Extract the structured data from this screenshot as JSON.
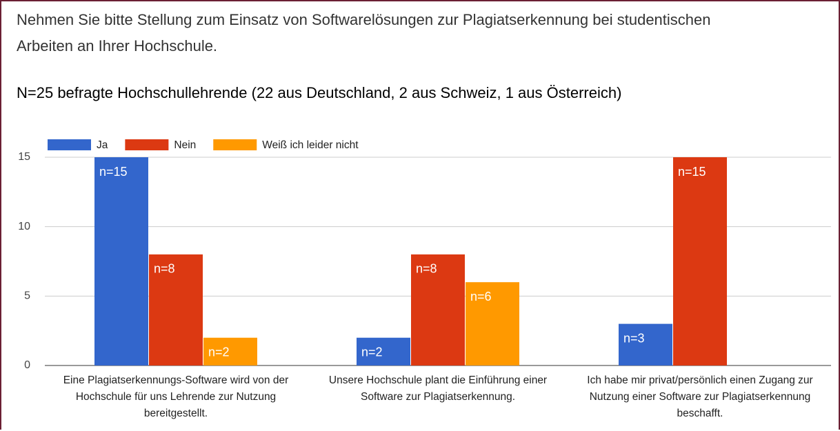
{
  "chart_data": {
    "type": "bar",
    "title": "Nehmen Sie bitte Stellung zum Einsatz von Softwarelösungen zur Plagiatserkennung bei studentischen Arbeiten an Ihrer Hochschule.",
    "subtitle": "N=25 befragte Hochschullehrende (22 aus Deutschland, 2 aus Schweiz, 1 aus Österreich)",
    "categories": [
      "Eine Plagiatserkennungs-Software wird von der Hochschule für uns Lehrende zur Nutzung bereitgestellt.",
      "Unsere Hochschule plant die Einführung einer Software zur Plagiatserkennung.",
      "Ich habe mir privat/persönlich einen Zugang zur Nutzung einer Software zur Plagiatserkennung beschafft."
    ],
    "series": [
      {
        "name": "Ja",
        "color": "#3366cc",
        "values": [
          15,
          2,
          3
        ],
        "value_labels": [
          "n=15",
          "n=2",
          "n=3"
        ]
      },
      {
        "name": "Nein",
        "color": "#dc3912",
        "values": [
          8,
          8,
          15
        ],
        "value_labels": [
          "n=8",
          "n=8",
          "n=15"
        ]
      },
      {
        "name": "Weiß ich leider nicht",
        "color": "#ff9900",
        "values": [
          2,
          6,
          0
        ],
        "value_labels": [
          "n=2",
          "n=6",
          null
        ]
      }
    ],
    "ylim": [
      0,
      15
    ],
    "yticks": [
      0,
      5,
      10,
      15
    ],
    "grid": true,
    "legend": "top"
  }
}
